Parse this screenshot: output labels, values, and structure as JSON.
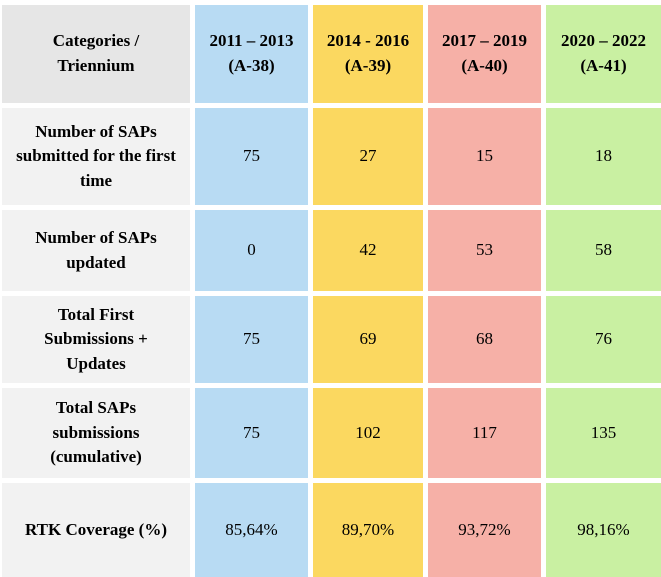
{
  "table": {
    "corner_label": "Categories /\nTriennium",
    "header_bg": "#e6e6e6",
    "label_bg": "#f2f2f2",
    "text_color": "#000000",
    "background_color": "#ffffff",
    "columns": [
      {
        "period": "2011 – 2013",
        "assembly": "(A-38)",
        "color": "#b8dbf3"
      },
      {
        "period": "2014 - 2016",
        "assembly": "(A-39)",
        "color": "#fbd860"
      },
      {
        "period": "2017 – 2019",
        "assembly": "(A-40)",
        "color": "#f6b0a7"
      },
      {
        "period": "2020 – 2022",
        "assembly": "(A-41)",
        "color": "#c9f0a2"
      }
    ],
    "rows": [
      {
        "label": "Number of SAPs\nsubmitted for the first\ntime",
        "values": [
          "75",
          "27",
          "15",
          "18"
        ]
      },
      {
        "label": "Number of SAPs\nupdated",
        "values": [
          "0",
          "42",
          "53",
          "58"
        ]
      },
      {
        "label": "Total First\nSubmissions +\nUpdates",
        "values": [
          "75",
          "69",
          "68",
          "76"
        ]
      },
      {
        "label": "Total SAPs\nsubmissions\n(cumulative)",
        "values": [
          "75",
          "102",
          "117",
          "135"
        ]
      },
      {
        "label": "RTK Coverage (%)",
        "values": [
          "85,64%",
          "89,70%",
          "93,72%",
          "98,16%"
        ]
      }
    ]
  },
  "chart_data": {
    "type": "table",
    "columns": [
      "Categories / Triennium",
      "2011 – 2013 (A-38)",
      "2014 - 2016 (A-39)",
      "2017 – 2019 (A-40)",
      "2020 – 2022 (A-41)"
    ],
    "rows": [
      [
        "Number of SAPs submitted for the first time",
        75,
        27,
        15,
        18
      ],
      [
        "Number of SAPs updated",
        0,
        42,
        53,
        58
      ],
      [
        "Total First Submissions + Updates",
        75,
        69,
        68,
        76
      ],
      [
        "Total SAPs submissions (cumulative)",
        75,
        102,
        117,
        135
      ],
      [
        "RTK Coverage (%)",
        "85,64%",
        "89,70%",
        "93,72%",
        "98,16%"
      ]
    ],
    "layout": {
      "grid": "off",
      "column_colors": [
        "#e6e6e6",
        "#b8dbf3",
        "#fbd860",
        "#f6b0a7",
        "#c9f0a2"
      ],
      "gap_color": "#ffffff"
    }
  }
}
